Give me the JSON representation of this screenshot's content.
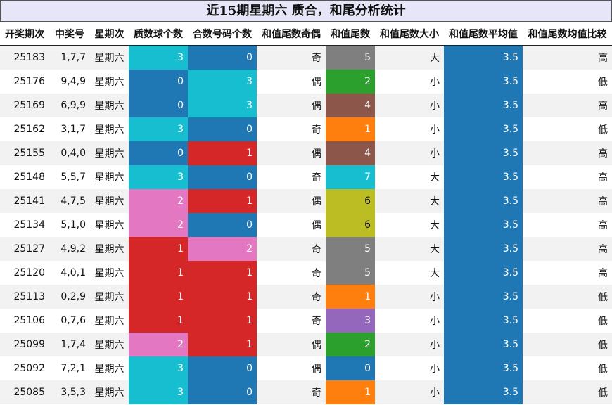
{
  "title": "近15期星期六 质合，和尾分析统计",
  "headers": [
    "开奖期次",
    "中奖号",
    "星期次",
    "质数球个数",
    "合数号码个数",
    "和值尾数奇偶",
    "和值尾数",
    "和值尾数大小",
    "和值尾数平均值",
    "和值尾数均值比较"
  ],
  "colors": {
    "count": {
      "0": "#1f77b4",
      "1": "#d62728",
      "2": "#e377c2",
      "3": "#17becf"
    },
    "tail": {
      "0": "#1f77b4",
      "1": "#ff7f0e",
      "2": "#2ca02c",
      "3": "#9467bd",
      "4": "#8c564b",
      "5": "#7f7f7f",
      "6": "#bcbd22",
      "7": "#17becf"
    },
    "avg": "#1f77b4"
  },
  "chart_data": {
    "type": "table",
    "title": "近15期星期六 质合，和尾分析统计",
    "columns": [
      "开奖期次",
      "中奖号",
      "星期次",
      "质数球个数",
      "合数号码个数",
      "和值尾数奇偶",
      "和值尾数",
      "和值尾数大小",
      "和值尾数平均值",
      "和值尾数均值比较"
    ],
    "rows": [
      [
        "25183",
        "1,7,7",
        "星期六",
        "3",
        "0",
        "奇",
        "5",
        "大",
        "3.5",
        "高"
      ],
      [
        "25176",
        "9,4,9",
        "星期六",
        "0",
        "3",
        "偶",
        "2",
        "小",
        "3.5",
        "低"
      ],
      [
        "25169",
        "6,9,9",
        "星期六",
        "0",
        "3",
        "偶",
        "4",
        "小",
        "3.5",
        "高"
      ],
      [
        "25162",
        "3,1,7",
        "星期六",
        "3",
        "0",
        "奇",
        "1",
        "小",
        "3.5",
        "低"
      ],
      [
        "25155",
        "0,4,0",
        "星期六",
        "0",
        "1",
        "偶",
        "4",
        "小",
        "3.5",
        "高"
      ],
      [
        "25148",
        "5,5,7",
        "星期六",
        "3",
        "0",
        "奇",
        "7",
        "大",
        "3.5",
        "高"
      ],
      [
        "25141",
        "4,7,5",
        "星期六",
        "2",
        "1",
        "偶",
        "6",
        "大",
        "3.5",
        "高"
      ],
      [
        "25134",
        "5,1,0",
        "星期六",
        "2",
        "0",
        "偶",
        "6",
        "大",
        "3.5",
        "高"
      ],
      [
        "25127",
        "4,9,2",
        "星期六",
        "1",
        "2",
        "奇",
        "5",
        "大",
        "3.5",
        "高"
      ],
      [
        "25120",
        "4,0,1",
        "星期六",
        "1",
        "1",
        "奇",
        "5",
        "大",
        "3.5",
        "高"
      ],
      [
        "25113",
        "0,2,9",
        "星期六",
        "1",
        "1",
        "奇",
        "1",
        "小",
        "3.5",
        "低"
      ],
      [
        "25106",
        "0,7,6",
        "星期六",
        "1",
        "1",
        "奇",
        "3",
        "小",
        "3.5",
        "低"
      ],
      [
        "25099",
        "1,7,4",
        "星期六",
        "2",
        "1",
        "偶",
        "2",
        "小",
        "3.5",
        "低"
      ],
      [
        "25092",
        "7,2,1",
        "星期六",
        "3",
        "0",
        "偶",
        "0",
        "小",
        "3.5",
        "低"
      ],
      [
        "25085",
        "3,5,3",
        "星期六",
        "3",
        "0",
        "奇",
        "1",
        "小",
        "3.5",
        "低"
      ]
    ]
  }
}
